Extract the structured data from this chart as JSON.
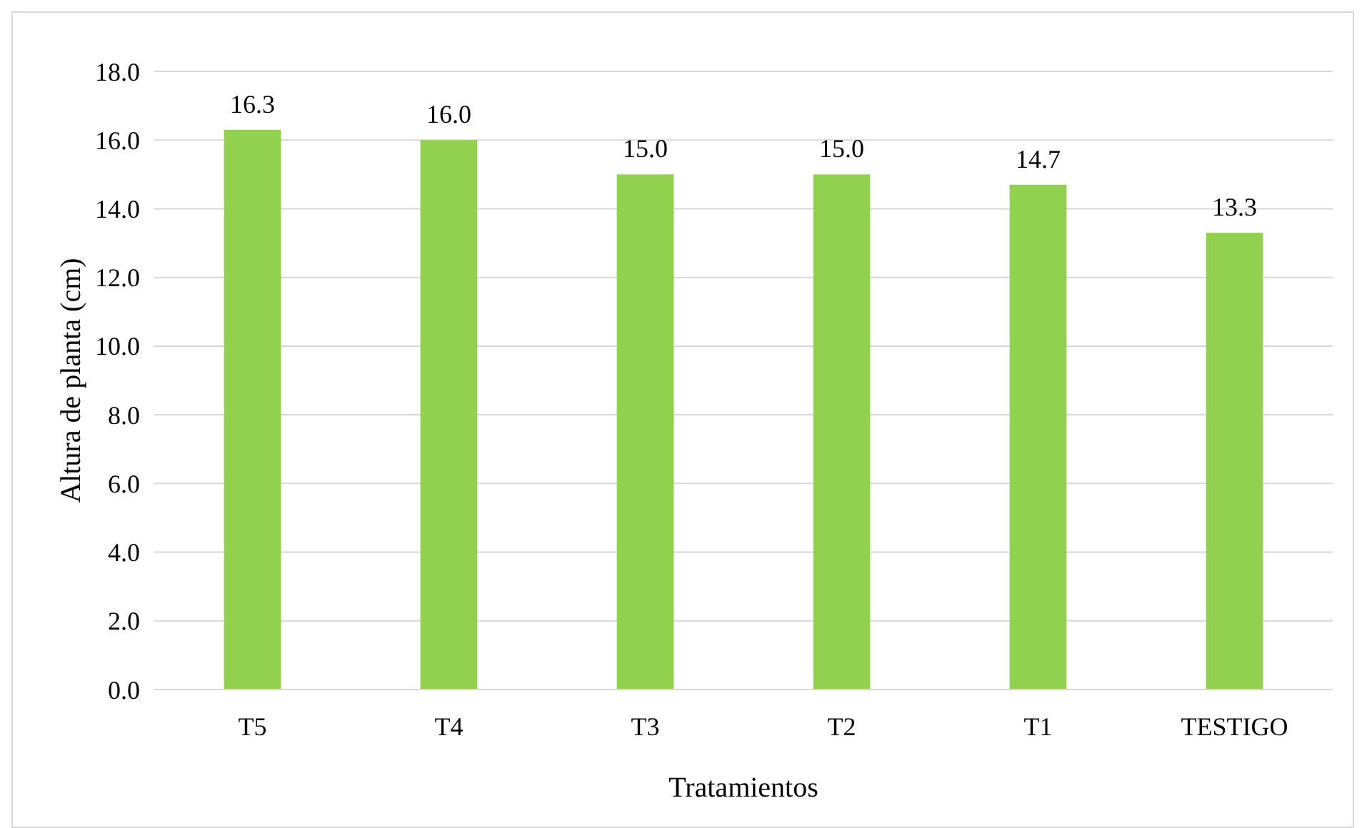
{
  "chart_data": {
    "type": "bar",
    "xlabel": "Tratamientos",
    "ylabel": "Altura de planta (cm)",
    "categories": [
      "T5",
      "T4",
      "T3",
      "T2",
      "T1",
      "TESTIGO"
    ],
    "values": [
      16.3,
      16.0,
      15.0,
      15.0,
      14.7,
      13.3
    ],
    "value_labels": [
      "16.3",
      "16.0",
      "15.0",
      "15.0",
      "14.7",
      "13.3"
    ],
    "color": "#92d050",
    "ylim": [
      0,
      18
    ],
    "yticks": [
      {
        "value": 0,
        "label": "0.0"
      },
      {
        "value": 2,
        "label": "2.0"
      },
      {
        "value": 4,
        "label": "4.0"
      },
      {
        "value": 6,
        "label": "6.0"
      },
      {
        "value": 8,
        "label": "8.0"
      },
      {
        "value": 10,
        "label": "10.0"
      },
      {
        "value": 12,
        "label": "12.0"
      },
      {
        "value": 14,
        "label": "14.0"
      },
      {
        "value": 16,
        "label": "16.0"
      },
      {
        "value": 18,
        "label": "18.0"
      }
    ],
    "grid": "y"
  }
}
